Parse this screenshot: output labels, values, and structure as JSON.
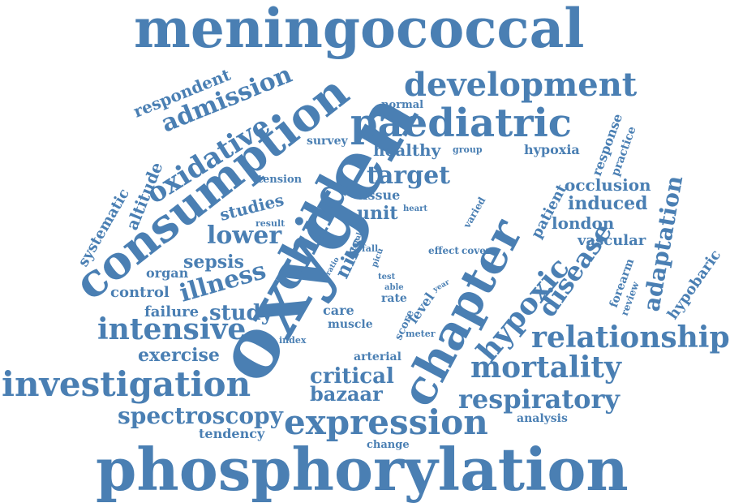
{
  "word_cloud": {
    "color": "#4a7fb3",
    "words": [
      "meningococcal",
      "phosphorylation",
      "oxygen",
      "consumption",
      "chapter",
      "child",
      "paediatric",
      "development",
      "expression",
      "investigation",
      "oxidative",
      "hypoxic",
      "relationship",
      "mortality",
      "intensive",
      "respiratory",
      "disease",
      "admission",
      "adaptation",
      "illness",
      "spectroscopy",
      "critical",
      "bazaar",
      "target",
      "lower",
      "study",
      "respondent",
      "exercise",
      "healthy",
      "induced",
      "occlusion",
      "london",
      "sepsis",
      "studies",
      "altitude",
      "systematic",
      "hypobaric",
      "nirs",
      "unit",
      "patient",
      "vascular",
      "control",
      "organ",
      "hypoxia",
      "response",
      "practice",
      "failure",
      "forearm",
      "review",
      "level",
      "care",
      "muscle",
      "tissue",
      "tension",
      "score",
      "rate",
      "meter",
      "tendency",
      "change",
      "analysis",
      "arterial",
      "normal",
      "survey",
      "group",
      "varied",
      "heart",
      "result",
      "effect",
      "cover",
      "fall",
      "picu",
      "ratio",
      "total",
      "test",
      "able",
      "year",
      "index"
    ]
  }
}
